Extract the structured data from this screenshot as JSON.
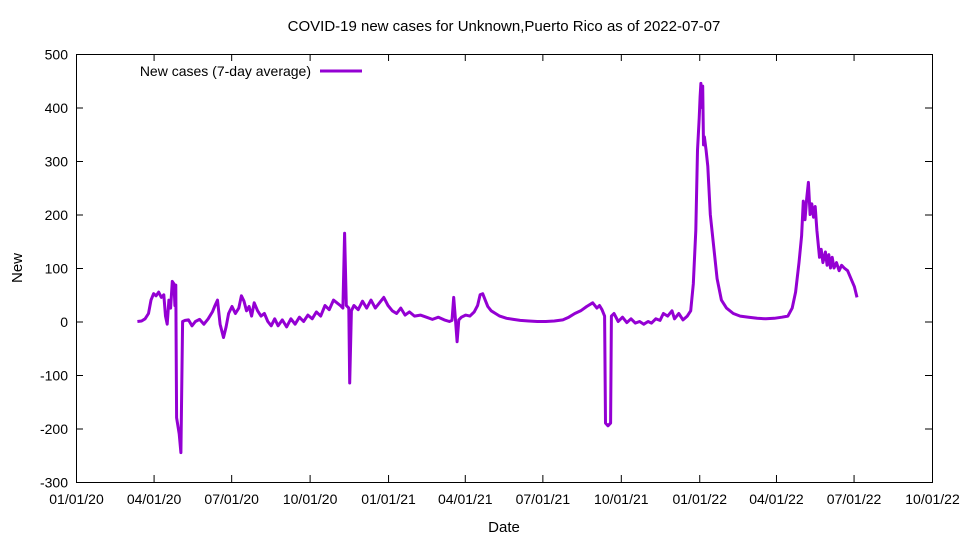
{
  "chart_data": {
    "type": "line",
    "title": "COVID-19 new cases for Unknown,Puerto Rico as of 2022-07-07",
    "xlabel": "Date",
    "ylabel": "New",
    "xlim": [
      "2020-01-01",
      "2022-10-01"
    ],
    "ylim": [
      -300,
      500
    ],
    "x_ticks": [
      "01/01/20",
      "04/01/20",
      "07/01/20",
      "10/01/20",
      "01/01/21",
      "04/01/21",
      "07/01/21",
      "10/01/21",
      "01/01/22",
      "04/01/22",
      "07/01/22",
      "10/01/22"
    ],
    "y_ticks": [
      "-300",
      "-200",
      "-100",
      "0",
      "100",
      "200",
      "300",
      "400",
      "500"
    ],
    "legend_position": "top-left",
    "grid": false,
    "series": [
      {
        "name": "New cases (7-day average)",
        "color": "#9400d3",
        "points": [
          [
            "2020-03-13",
            0
          ],
          [
            "2020-03-18",
            1
          ],
          [
            "2020-03-22",
            5
          ],
          [
            "2020-03-26",
            15
          ],
          [
            "2020-03-29",
            40
          ],
          [
            "2020-04-01",
            52
          ],
          [
            "2020-04-04",
            48
          ],
          [
            "2020-04-07",
            55
          ],
          [
            "2020-04-10",
            45
          ],
          [
            "2020-04-13",
            50
          ],
          [
            "2020-04-15",
            10
          ],
          [
            "2020-04-17",
            -5
          ],
          [
            "2020-04-19",
            40
          ],
          [
            "2020-04-21",
            25
          ],
          [
            "2020-04-23",
            75
          ],
          [
            "2020-04-25",
            70
          ],
          [
            "2020-04-26",
            30
          ],
          [
            "2020-04-27",
            68
          ],
          [
            "2020-04-28",
            -180
          ],
          [
            "2020-05-01",
            -210
          ],
          [
            "2020-05-03",
            -245
          ],
          [
            "2020-05-05",
            0
          ],
          [
            "2020-05-08",
            2
          ],
          [
            "2020-05-12",
            3
          ],
          [
            "2020-05-16",
            -8
          ],
          [
            "2020-05-20",
            0
          ],
          [
            "2020-05-25",
            4
          ],
          [
            "2020-05-30",
            -5
          ],
          [
            "2020-06-04",
            5
          ],
          [
            "2020-06-09",
            18
          ],
          [
            "2020-06-12",
            30
          ],
          [
            "2020-06-15",
            40
          ],
          [
            "2020-06-18",
            -5
          ],
          [
            "2020-06-22",
            -30
          ],
          [
            "2020-06-25",
            -10
          ],
          [
            "2020-06-28",
            15
          ],
          [
            "2020-07-02",
            28
          ],
          [
            "2020-07-06",
            15
          ],
          [
            "2020-07-10",
            25
          ],
          [
            "2020-07-13",
            48
          ],
          [
            "2020-07-16",
            38
          ],
          [
            "2020-07-19",
            20
          ],
          [
            "2020-07-22",
            28
          ],
          [
            "2020-07-25",
            10
          ],
          [
            "2020-07-28",
            35
          ],
          [
            "2020-08-01",
            20
          ],
          [
            "2020-08-05",
            10
          ],
          [
            "2020-08-09",
            15
          ],
          [
            "2020-08-13",
            0
          ],
          [
            "2020-08-17",
            -8
          ],
          [
            "2020-08-21",
            5
          ],
          [
            "2020-08-25",
            -8
          ],
          [
            "2020-08-30",
            3
          ],
          [
            "2020-09-04",
            -10
          ],
          [
            "2020-09-09",
            5
          ],
          [
            "2020-09-14",
            -5
          ],
          [
            "2020-09-19",
            8
          ],
          [
            "2020-09-24",
            0
          ],
          [
            "2020-09-29",
            12
          ],
          [
            "2020-10-04",
            5
          ],
          [
            "2020-10-09",
            18
          ],
          [
            "2020-10-14",
            10
          ],
          [
            "2020-10-19",
            30
          ],
          [
            "2020-10-24",
            22
          ],
          [
            "2020-10-29",
            40
          ],
          [
            "2020-11-02",
            35
          ],
          [
            "2020-11-06",
            30
          ],
          [
            "2020-11-09",
            25
          ],
          [
            "2020-11-11",
            165
          ],
          [
            "2020-11-13",
            30
          ],
          [
            "2020-11-16",
            25
          ],
          [
            "2020-11-17",
            -115
          ],
          [
            "2020-11-19",
            20
          ],
          [
            "2020-11-22",
            30
          ],
          [
            "2020-11-27",
            22
          ],
          [
            "2020-12-02",
            38
          ],
          [
            "2020-12-07",
            25
          ],
          [
            "2020-12-12",
            40
          ],
          [
            "2020-12-17",
            25
          ],
          [
            "2020-12-22",
            35
          ],
          [
            "2020-12-27",
            45
          ],
          [
            "2021-01-01",
            30
          ],
          [
            "2021-01-06",
            20
          ],
          [
            "2021-01-11",
            15
          ],
          [
            "2021-01-16",
            25
          ],
          [
            "2021-01-21",
            12
          ],
          [
            "2021-01-26",
            18
          ],
          [
            "2021-02-01",
            10
          ],
          [
            "2021-02-08",
            12
          ],
          [
            "2021-02-15",
            8
          ],
          [
            "2021-02-22",
            4
          ],
          [
            "2021-03-01",
            8
          ],
          [
            "2021-03-08",
            3
          ],
          [
            "2021-03-14",
            0
          ],
          [
            "2021-03-17",
            2
          ],
          [
            "2021-03-19",
            45
          ],
          [
            "2021-03-21",
            5
          ],
          [
            "2021-03-23",
            -38
          ],
          [
            "2021-03-25",
            3
          ],
          [
            "2021-03-28",
            8
          ],
          [
            "2021-04-02",
            12
          ],
          [
            "2021-04-07",
            10
          ],
          [
            "2021-04-12",
            18
          ],
          [
            "2021-04-16",
            30
          ],
          [
            "2021-04-19",
            50
          ],
          [
            "2021-04-22",
            52
          ],
          [
            "2021-04-25",
            40
          ],
          [
            "2021-04-28",
            28
          ],
          [
            "2021-05-02",
            20
          ],
          [
            "2021-05-07",
            15
          ],
          [
            "2021-05-12",
            10
          ],
          [
            "2021-05-20",
            6
          ],
          [
            "2021-05-28",
            4
          ],
          [
            "2021-06-05",
            2
          ],
          [
            "2021-06-15",
            1
          ],
          [
            "2021-06-25",
            0
          ],
          [
            "2021-07-05",
            0
          ],
          [
            "2021-07-15",
            1
          ],
          [
            "2021-07-25",
            3
          ],
          [
            "2021-08-01",
            8
          ],
          [
            "2021-08-08",
            15
          ],
          [
            "2021-08-15",
            20
          ],
          [
            "2021-08-22",
            28
          ],
          [
            "2021-08-29",
            35
          ],
          [
            "2021-09-03",
            25
          ],
          [
            "2021-09-06",
            30
          ],
          [
            "2021-09-09",
            22
          ],
          [
            "2021-09-12",
            10
          ],
          [
            "2021-09-13",
            -190
          ],
          [
            "2021-09-16",
            -195
          ],
          [
            "2021-09-19",
            -190
          ],
          [
            "2021-09-20",
            10
          ],
          [
            "2021-09-23",
            15
          ],
          [
            "2021-09-28",
            0
          ],
          [
            "2021-10-03",
            8
          ],
          [
            "2021-10-08",
            -2
          ],
          [
            "2021-10-13",
            5
          ],
          [
            "2021-10-18",
            -3
          ],
          [
            "2021-10-23",
            0
          ],
          [
            "2021-10-28",
            -5
          ],
          [
            "2021-11-02",
            0
          ],
          [
            "2021-11-06",
            -3
          ],
          [
            "2021-11-11",
            5
          ],
          [
            "2021-11-16",
            2
          ],
          [
            "2021-11-20",
            15
          ],
          [
            "2021-11-25",
            10
          ],
          [
            "2021-11-30",
            20
          ],
          [
            "2021-12-03",
            5
          ],
          [
            "2021-12-08",
            15
          ],
          [
            "2021-12-13",
            3
          ],
          [
            "2021-12-18",
            10
          ],
          [
            "2021-12-22",
            20
          ],
          [
            "2021-12-25",
            70
          ],
          [
            "2021-12-28",
            170
          ],
          [
            "2021-12-30",
            320
          ],
          [
            "2022-01-01",
            380
          ],
          [
            "2022-01-02",
            420
          ],
          [
            "2022-01-03",
            445
          ],
          [
            "2022-01-04",
            400
          ],
          [
            "2022-01-05",
            440
          ],
          [
            "2022-01-06",
            330
          ],
          [
            "2022-01-07",
            345
          ],
          [
            "2022-01-09",
            320
          ],
          [
            "2022-01-11",
            290
          ],
          [
            "2022-01-14",
            200
          ],
          [
            "2022-01-18",
            140
          ],
          [
            "2022-01-22",
            80
          ],
          [
            "2022-01-27",
            40
          ],
          [
            "2022-02-02",
            25
          ],
          [
            "2022-02-10",
            15
          ],
          [
            "2022-02-18",
            10
          ],
          [
            "2022-02-28",
            8
          ],
          [
            "2022-03-10",
            6
          ],
          [
            "2022-03-20",
            5
          ],
          [
            "2022-03-30",
            6
          ],
          [
            "2022-04-08",
            8
          ],
          [
            "2022-04-15",
            10
          ],
          [
            "2022-04-20",
            25
          ],
          [
            "2022-04-24",
            55
          ],
          [
            "2022-04-28",
            110
          ],
          [
            "2022-05-01",
            160
          ],
          [
            "2022-05-03",
            225
          ],
          [
            "2022-05-05",
            190
          ],
          [
            "2022-05-07",
            230
          ],
          [
            "2022-05-09",
            260
          ],
          [
            "2022-05-11",
            200
          ],
          [
            "2022-05-13",
            220
          ],
          [
            "2022-05-15",
            195
          ],
          [
            "2022-05-17",
            215
          ],
          [
            "2022-05-19",
            170
          ],
          [
            "2022-05-22",
            120
          ],
          [
            "2022-05-24",
            135
          ],
          [
            "2022-05-26",
            110
          ],
          [
            "2022-05-29",
            130
          ],
          [
            "2022-05-31",
            105
          ],
          [
            "2022-06-02",
            125
          ],
          [
            "2022-06-04",
            100
          ],
          [
            "2022-06-06",
            120
          ],
          [
            "2022-06-08",
            100
          ],
          [
            "2022-06-11",
            110
          ],
          [
            "2022-06-14",
            95
          ],
          [
            "2022-06-17",
            105
          ],
          [
            "2022-06-20",
            100
          ],
          [
            "2022-06-24",
            95
          ],
          [
            "2022-06-28",
            80
          ],
          [
            "2022-07-02",
            65
          ],
          [
            "2022-07-05",
            45
          ]
        ]
      }
    ]
  }
}
